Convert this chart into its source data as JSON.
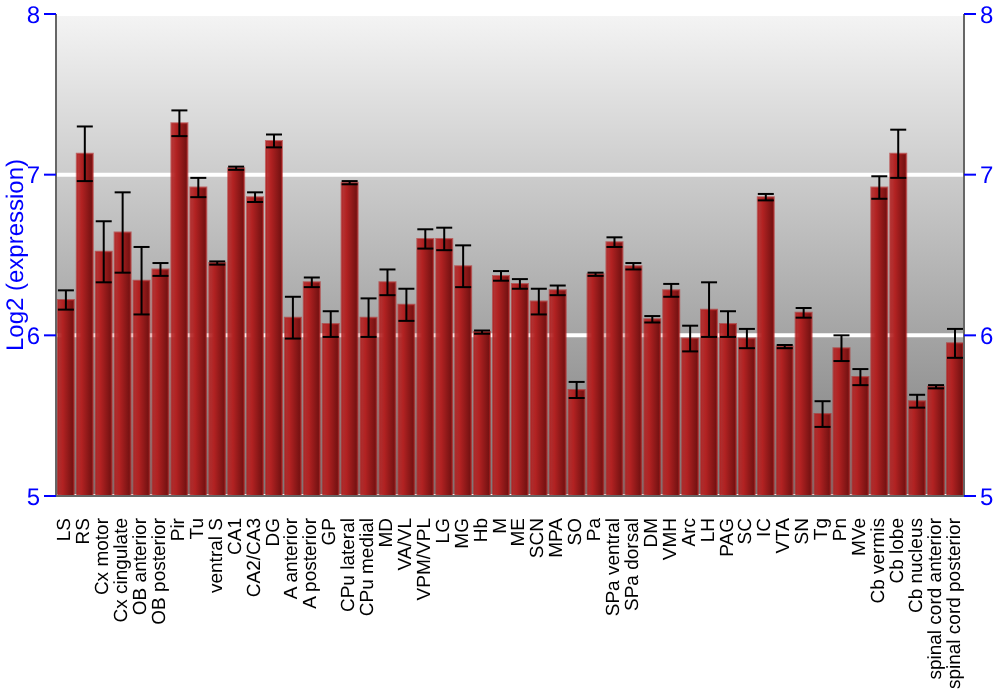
{
  "chart_data": {
    "type": "bar",
    "ylabel": "Log2 (expression)",
    "categories": [
      "LS",
      "RS",
      "Cx motor",
      "Cx cingulate",
      "OB anterior",
      "OB posterior",
      "Pir",
      "Tu",
      "ventral S",
      "CA1",
      "CA2/CA3",
      "DG",
      "A anterior",
      "A posterior",
      "GP",
      "CPu lateral",
      "CPu medial",
      "MD",
      "VA/VL",
      "VPM/VPL",
      "LG",
      "MG",
      "Hb",
      "M",
      "ME",
      "SCN",
      "MPA",
      "SO",
      "Pa",
      "SPa ventral",
      "SPa dorsal",
      "DM",
      "VMH",
      "Arc",
      "LH",
      "PAG",
      "SC",
      "IC",
      "VTA",
      "SN",
      "Tg",
      "Pn",
      "MVe",
      "Cb vermis",
      "Cb lobe",
      "Cb nucleus",
      "spinal cord anterior",
      "spinal cord posterior"
    ],
    "values": [
      6.22,
      7.13,
      6.52,
      6.64,
      6.34,
      6.41,
      7.32,
      6.92,
      6.45,
      7.04,
      6.86,
      7.21,
      6.11,
      6.33,
      6.07,
      6.95,
      6.11,
      6.33,
      6.19,
      6.6,
      6.6,
      6.43,
      6.02,
      6.37,
      6.32,
      6.21,
      6.28,
      5.66,
      6.38,
      6.58,
      6.43,
      6.1,
      6.28,
      5.98,
      6.16,
      6.07,
      5.98,
      6.86,
      5.93,
      6.14,
      5.51,
      5.92,
      5.74,
      6.92,
      7.13,
      5.59,
      5.68,
      5.95
    ],
    "errors": [
      0.06,
      0.17,
      0.19,
      0.25,
      0.21,
      0.04,
      0.08,
      0.06,
      0.01,
      0.01,
      0.03,
      0.04,
      0.13,
      0.03,
      0.08,
      0.01,
      0.12,
      0.08,
      0.1,
      0.06,
      0.07,
      0.13,
      0.01,
      0.03,
      0.03,
      0.08,
      0.03,
      0.05,
      0.01,
      0.03,
      0.02,
      0.02,
      0.04,
      0.08,
      0.17,
      0.08,
      0.06,
      0.02,
      0.01,
      0.03,
      0.08,
      0.08,
      0.05,
      0.07,
      0.15,
      0.04,
      0.01,
      0.09
    ],
    "color": "#b22222",
    "ylim": [
      5,
      8
    ],
    "yticks": [
      5,
      6,
      7,
      8
    ],
    "y2lim": [
      5,
      8
    ],
    "y2ticks": [
      5,
      6,
      7,
      8
    ],
    "grid": "y"
  }
}
